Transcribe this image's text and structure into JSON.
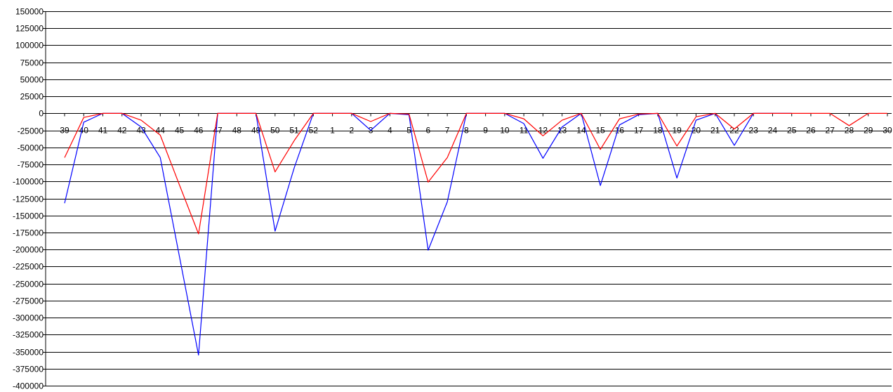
{
  "chart_data": {
    "type": "line",
    "title": "",
    "xlabel": "",
    "ylabel": "",
    "grid": true,
    "ylim": [
      -400000,
      150000
    ],
    "yticks": [
      150000,
      125000,
      100000,
      75000,
      50000,
      25000,
      0,
      -25000,
      -50000,
      -75000,
      -100000,
      -125000,
      -150000,
      -175000,
      -200000,
      -225000,
      -250000,
      -275000,
      -300000,
      -325000,
      -350000,
      -375000,
      -400000
    ],
    "categories": [
      "39",
      "40",
      "41",
      "42",
      "43",
      "44",
      "45",
      "46",
      "47",
      "48",
      "49",
      "50",
      "51",
      "52",
      "1",
      "2",
      "3",
      "4",
      "5",
      "6",
      "7",
      "8",
      "9",
      "10",
      "11",
      "12",
      "13",
      "14",
      "15",
      "16",
      "17",
      "18",
      "19",
      "20",
      "21",
      "22",
      "23",
      "24",
      "25",
      "26",
      "27",
      "28",
      "29",
      "30"
    ],
    "series": [
      {
        "color": "#0000ff",
        "values": [
          -132000,
          -13000,
          0,
          0,
          -20000,
          -65000,
          -210000,
          -355000,
          0,
          0,
          0,
          -173000,
          -80000,
          0,
          0,
          0,
          -25000,
          0,
          -2000,
          -201000,
          -130000,
          0,
          0,
          0,
          -15000,
          -66000,
          -20000,
          0,
          -106000,
          -17000,
          -2000,
          0,
          -95000,
          -10000,
          0,
          -47000,
          0,
          0,
          0,
          null,
          null,
          null,
          null,
          null
        ]
      },
      {
        "color": "#ff0000",
        "values": [
          -65000,
          -6000,
          0,
          0,
          -10000,
          -32000,
          -105000,
          -177000,
          0,
          0,
          0,
          -86000,
          -40000,
          0,
          0,
          0,
          -12000,
          0,
          -1000,
          -101000,
          -65000,
          0,
          0,
          0,
          -8000,
          -33000,
          -10000,
          0,
          -53000,
          -8000,
          -1000,
          0,
          -48000,
          -5000,
          0,
          -23000,
          0,
          0,
          0,
          0,
          0,
          -18000,
          0,
          0
        ]
      }
    ]
  }
}
